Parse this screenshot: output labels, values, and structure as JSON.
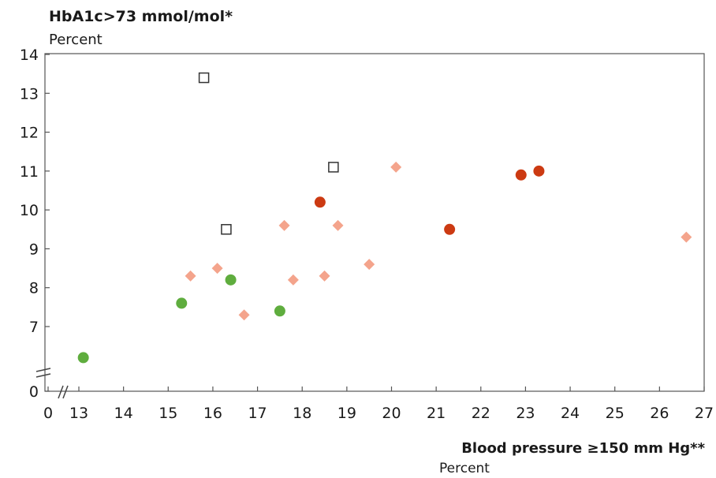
{
  "chart_data": {
    "type": "scatter",
    "title": "HbA1c>73 mmol/mol*",
    "ylabel_unit": "Percent",
    "xlabel": "Blood pressure ≥150 mm Hg**",
    "xlabel_unit": "Percent",
    "xlim": [
      12.5,
      27
    ],
    "ylim": [
      6,
      14
    ],
    "axis_break": true,
    "x_ticks": [
      "0",
      "13",
      "14",
      "15",
      "16",
      "17",
      "18",
      "19",
      "20",
      "21",
      "22",
      "23",
      "24",
      "25",
      "26",
      "27"
    ],
    "y_ticks": [
      "0",
      "7",
      "8",
      "9",
      "10",
      "11",
      "12",
      "13",
      "14"
    ],
    "grid": false,
    "series": [
      {
        "marker": "open-square",
        "color": "#333333",
        "points": [
          {
            "x": 15.8,
            "y": 13.4
          },
          {
            "x": 18.7,
            "y": 11.1
          },
          {
            "x": 16.3,
            "y": 9.5
          }
        ]
      },
      {
        "marker": "diamond",
        "color": "#f4a48c",
        "points": [
          {
            "x": 15.5,
            "y": 8.3
          },
          {
            "x": 16.1,
            "y": 8.5
          },
          {
            "x": 16.7,
            "y": 7.3
          },
          {
            "x": 17.6,
            "y": 9.6
          },
          {
            "x": 17.8,
            "y": 8.2
          },
          {
            "x": 18.5,
            "y": 8.3
          },
          {
            "x": 18.8,
            "y": 9.6
          },
          {
            "x": 19.5,
            "y": 8.6
          },
          {
            "x": 20.1,
            "y": 11.1
          },
          {
            "x": 26.6,
            "y": 9.3
          }
        ]
      },
      {
        "marker": "circle",
        "color": "#cc3a12",
        "points": [
          {
            "x": 18.4,
            "y": 10.2
          },
          {
            "x": 21.3,
            "y": 9.5
          },
          {
            "x": 22.9,
            "y": 10.9
          },
          {
            "x": 23.3,
            "y": 11.0
          }
        ]
      },
      {
        "marker": "circle",
        "color": "#5fad3e",
        "points": [
          {
            "x": 13.1,
            "y": 6.2
          },
          {
            "x": 15.3,
            "y": 7.6
          },
          {
            "x": 16.4,
            "y": 8.2
          },
          {
            "x": 17.5,
            "y": 7.4
          }
        ]
      }
    ]
  }
}
